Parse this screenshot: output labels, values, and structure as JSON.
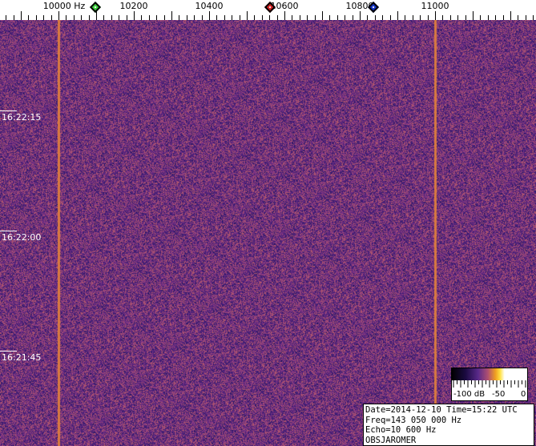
{
  "frequency_axis": {
    "unit": "Hz",
    "labels": [
      {
        "value": 10000,
        "text": "10000 Hz"
      },
      {
        "value": 10200,
        "text": "10200"
      },
      {
        "value": 10400,
        "text": "10400"
      },
      {
        "value": 10600,
        "text": "10600"
      },
      {
        "value": 10800,
        "text": "10800"
      },
      {
        "value": 11000,
        "text": "11000"
      }
    ]
  },
  "markers": [
    {
      "name": "green",
      "freq": 10100,
      "color": "#3ccf3c"
    },
    {
      "name": "red",
      "freq": 10560,
      "color": "#d02020"
    },
    {
      "name": "blue",
      "freq": 10835,
      "color": "#1030c0"
    }
  ],
  "time_labels": [
    "16:22:15",
    "16:22:00",
    "16:21:45"
  ],
  "carrier_lines_hz": [
    10000,
    11000
  ],
  "colors": {
    "background": "#3a1b6e",
    "noise_high": "#8a3c8c",
    "carrier": "#d87a40"
  },
  "colorbar": {
    "min_label": "-100 dB",
    "mid_label": "-50",
    "max_label": "0"
  },
  "info": {
    "line1": "Date=2014-12-10 Time=15:22 UTC",
    "line2": "Freq=143 050 000 Hz",
    "line3": "Echo=10 600 Hz",
    "line4": "OBSJAROMER"
  }
}
